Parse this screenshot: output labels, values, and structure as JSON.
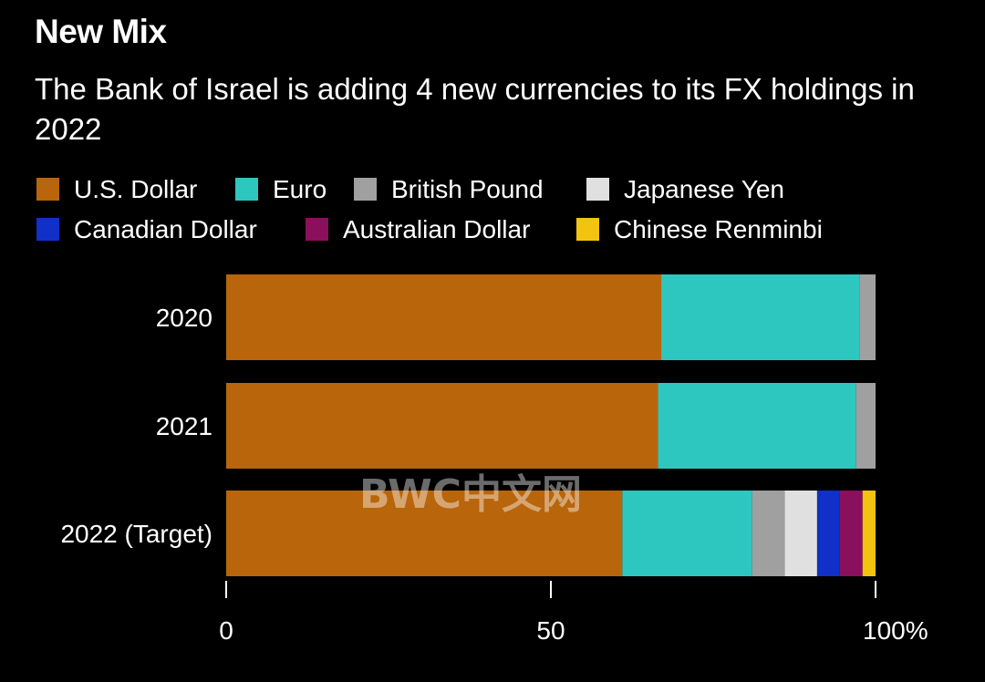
{
  "title": "New Mix",
  "subtitle": "The Bank of Israel is adding 4 new currencies to its FX holdings in 2022",
  "watermark": "BWC中文网",
  "chart_data": {
    "type": "bar",
    "orientation": "horizontal",
    "stacked": true,
    "categories": [
      "2020",
      "2021",
      "2022 (Target)"
    ],
    "series": [
      {
        "name": "U.S. Dollar",
        "color": "#b8650c",
        "values": [
          67,
          66.5,
          61
        ]
      },
      {
        "name": "Euro",
        "color": "#2ec7c0",
        "values": [
          30.5,
          30.5,
          20
        ]
      },
      {
        "name": "British Pound",
        "color": "#a0a0a0",
        "values": [
          2.5,
          3,
          5
        ]
      },
      {
        "name": "Japanese Yen",
        "color": "#e0e0e0",
        "values": [
          0,
          0,
          5
        ]
      },
      {
        "name": "Canadian Dollar",
        "color": "#1030c8",
        "values": [
          0,
          0,
          3.5
        ]
      },
      {
        "name": "Australian Dollar",
        "color": "#8a0f5c",
        "values": [
          0,
          0,
          3.5
        ]
      },
      {
        "name": "Chinese Renminbi",
        "color": "#f2c40f",
        "values": [
          0,
          0,
          2
        ]
      }
    ],
    "xlim": [
      0,
      100
    ],
    "xticks": [
      {
        "value": 0,
        "label": "0"
      },
      {
        "value": 50,
        "label": "50"
      },
      {
        "value": 100,
        "label": "100%"
      }
    ],
    "legend": "top-left",
    "grid": false
  }
}
